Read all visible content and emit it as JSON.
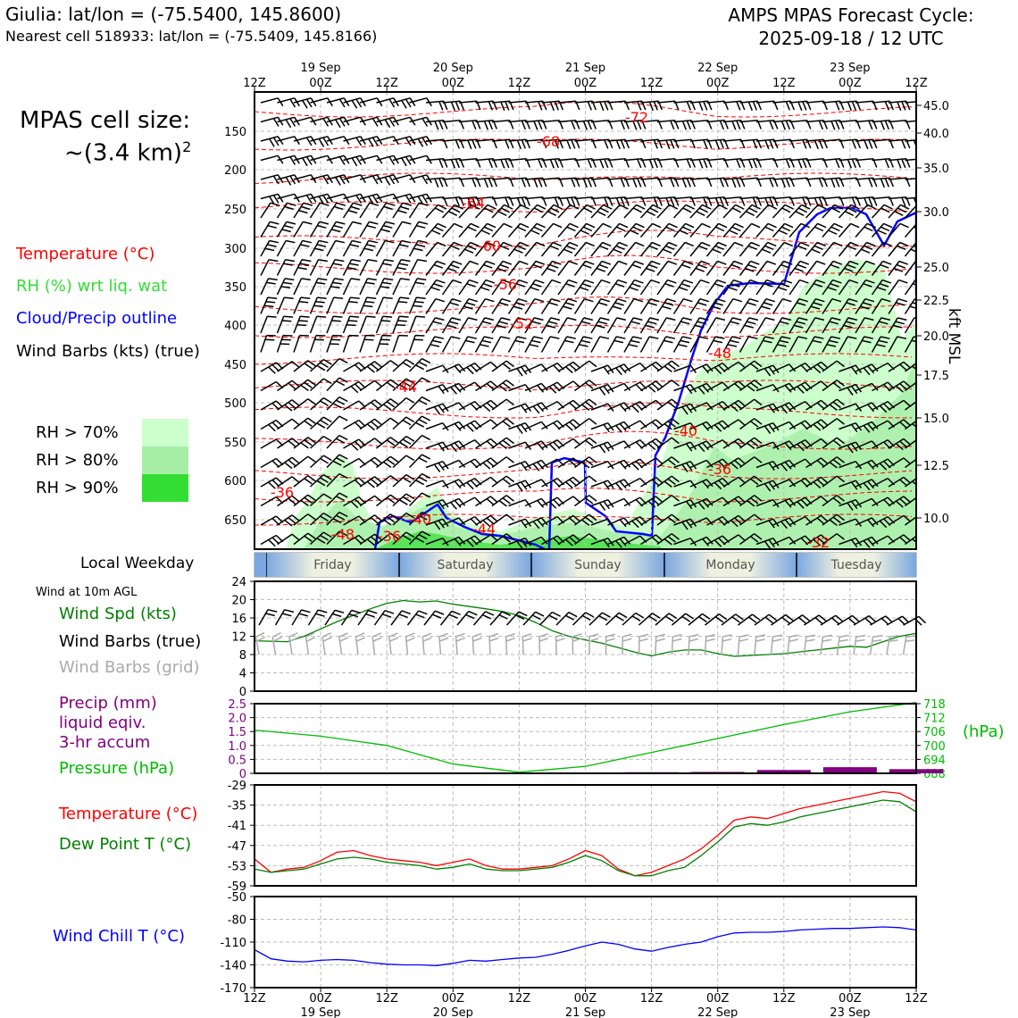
{
  "header": {
    "station": "Giulia: lat/lon = (-75.5400, 145.8600)",
    "nearest": "Nearest cell 518933: lat/lon = (-75.5409, 145.8166)",
    "cycle_line1": "AMPS MPAS Forecast Cycle:",
    "cycle_line2": "2025-09-18 / 12 UTC"
  },
  "legend": {
    "cell_size_label": "MPAS cell size:",
    "cell_size_value": "~(3.4 km)",
    "cell_size_exp": "2",
    "temperature": "Temperature (°C)",
    "rh": "RH (%) wrt liq. wat",
    "cloud": "Cloud/Precip outline",
    "barbs": "Wind Barbs (kts) (true)",
    "rh70": "RH > 70%",
    "rh80": "RH > 80%",
    "rh90": "RH > 90%",
    "weekday_label": "Local Weekday",
    "wind10m": "Wind at 10m AGL",
    "wind_spd": "Wind Spd (kts)",
    "barbs_true": "Wind Barbs (true)",
    "barbs_grid": "Wind Barbs (grid)",
    "precip1": "Precip (mm)",
    "precip2": "liquid eqiv.",
    "precip3": "3-hr accum",
    "pressure": "Pressure (hPa)",
    "hpa_unit": "(hPa)",
    "temp2": "Temperature (°C)",
    "dew": "Dew Point T (°C)",
    "windchill": "Wind Chill T (°C)",
    "kft": "kft MSL"
  },
  "colors": {
    "temp": "#ff0000",
    "rh": "#33dd33",
    "cloud": "#0000ff",
    "pressure": "#00bb00",
    "precip": "#800080",
    "dew": "#008000",
    "windchill": "#0000ff",
    "grid_barb": "#aaaaaa",
    "rh70": "#ccffcc",
    "rh80": "#a6eea6",
    "rh90": "#33dd33"
  },
  "chart_data": [
    {
      "type": "area",
      "name": "cross-section",
      "x_ticks": [
        "12Z",
        "00Z",
        "12Z",
        "00Z",
        "12Z",
        "00Z",
        "12Z",
        "00Z",
        "12Z",
        "00Z",
        "12Z"
      ],
      "x_dates": [
        "19 Sep",
        "20 Sep",
        "21 Sep",
        "22 Sep",
        "23 Sep"
      ],
      "y_left_ticks": [
        150,
        200,
        250,
        300,
        350,
        400,
        450,
        500,
        550,
        600,
        650
      ],
      "y_right_ticks": [
        "45.0",
        "40.0",
        "35.0",
        "30.0",
        "25.0",
        "22.5",
        "20.0",
        "17.5",
        "15.0",
        "12.5",
        "10.0"
      ],
      "temperature_labels": [
        "-72",
        "-68",
        "-64",
        "-60",
        "-56",
        "-52",
        "-48",
        "-44",
        "-40",
        "-36",
        "-36",
        "-40",
        "-44",
        "-48",
        "-36",
        "-32"
      ]
    },
    {
      "type": "bar",
      "name": "weekday",
      "categories": [
        "Friday",
        "Saturday",
        "Sunday",
        "Monday",
        "Tuesday"
      ]
    },
    {
      "type": "line",
      "name": "wind10m",
      "ylim": [
        0,
        24
      ],
      "y_ticks": [
        "0",
        "4",
        "8",
        "12",
        "16",
        "20",
        "24"
      ],
      "x_hours": [
        0,
        6,
        9,
        12,
        15,
        18,
        21,
        24,
        27,
        30,
        33,
        36,
        39,
        42,
        45,
        48,
        51,
        54,
        57,
        60,
        63,
        66,
        69,
        72,
        75,
        78,
        81,
        84,
        87,
        90,
        93,
        96,
        99,
        102,
        105,
        108,
        111,
        114,
        117,
        120
      ],
      "series": [
        {
          "values": [
            11,
            10.8,
            12,
            13.6,
            15.2,
            16.6,
            18,
            19.2,
            19.8,
            19.5,
            19.7,
            19,
            18.5,
            18,
            17.4,
            16.5,
            15,
            13.2,
            12,
            11.2,
            10.5,
            9.5,
            8.5,
            7.7,
            8.5,
            9,
            9,
            8.2,
            7.6,
            7.8,
            8,
            8.2,
            8.6,
            9,
            9.4,
            9.8,
            9.6,
            10.8,
            12,
            12.6
          ]
        }
      ]
    },
    {
      "type": "line",
      "name": "precip-pressure",
      "ylim": [
        0,
        2.5
      ],
      "y_ticks": [
        "0",
        "0.5",
        "1.0",
        "1.5",
        "2.0",
        "2.5"
      ],
      "y2_ticks": [
        "688",
        "694",
        "700",
        "706",
        "712",
        "718"
      ],
      "x_hours": [
        0,
        12,
        24,
        36,
        48,
        60,
        72,
        84,
        96,
        108,
        120
      ],
      "series": [
        {
          "values": [
            706.6,
            704,
            700,
            692,
            688.5,
            691,
            697,
            703,
            709,
            714.5,
            718.5
          ]
        },
        {
          "values": [
            0,
            0,
            0,
            0,
            0,
            0,
            0.04,
            0.05,
            0.12,
            0.22,
            0.15
          ]
        }
      ]
    },
    {
      "type": "line",
      "name": "temperature-dew",
      "ylim": [
        -59,
        -29
      ],
      "y_ticks": [
        "-59",
        "-53",
        "-47",
        "-41",
        "-35",
        "-29"
      ],
      "x_hours": [
        0,
        3,
        6,
        9,
        12,
        15,
        18,
        21,
        24,
        27,
        30,
        33,
        36,
        39,
        42,
        45,
        48,
        51,
        54,
        57,
        60,
        63,
        66,
        69,
        72,
        75,
        78,
        81,
        84,
        87,
        90,
        93,
        96,
        99,
        102,
        105,
        108,
        111,
        114,
        117,
        120
      ],
      "series": [
        {
          "values": [
            -51,
            -55,
            -54,
            -53.5,
            -51.5,
            -49,
            -48.5,
            -50,
            -51,
            -51.5,
            -52,
            -53,
            -52,
            -51,
            -53,
            -54,
            -54,
            -53.5,
            -53,
            -51,
            -48.5,
            -50,
            -54,
            -56,
            -55,
            -53,
            -51,
            -48,
            -44,
            -39.5,
            -38.5,
            -39,
            -37.5,
            -36,
            -35,
            -34,
            -33,
            -32,
            -31,
            -31.5,
            -34
          ]
        },
        {
          "values": [
            -54,
            -55,
            -54.5,
            -54,
            -52.5,
            -51,
            -50.5,
            -51,
            -52,
            -52.5,
            -53,
            -54,
            -53.5,
            -52.5,
            -54,
            -54.5,
            -54.5,
            -54,
            -53.5,
            -52,
            -50,
            -51.5,
            -54.5,
            -56,
            -56,
            -54.5,
            -53.5,
            -50,
            -46,
            -41.5,
            -40.5,
            -41,
            -40,
            -38.5,
            -37.5,
            -36.5,
            -35.5,
            -34.5,
            -33.5,
            -34,
            -37
          ]
        }
      ]
    },
    {
      "type": "line",
      "name": "windchill",
      "ylim": [
        -170,
        -50
      ],
      "y_ticks": [
        "-170",
        "-140",
        "-110",
        "-80",
        "-50"
      ],
      "x_ticks": [
        "12Z",
        "00Z",
        "12Z",
        "00Z",
        "12Z",
        "00Z",
        "12Z",
        "00Z",
        "12Z",
        "00Z",
        "12Z"
      ],
      "x_dates": [
        "19 Sep",
        "20 Sep",
        "21 Sep",
        "22 Sep",
        "23 Sep"
      ],
      "x_hours": [
        0,
        3,
        6,
        9,
        12,
        15,
        18,
        21,
        24,
        27,
        30,
        33,
        36,
        39,
        42,
        45,
        48,
        51,
        54,
        57,
        60,
        63,
        66,
        69,
        72,
        75,
        78,
        81,
        84,
        87,
        90,
        93,
        96,
        99,
        102,
        105,
        108,
        111,
        114,
        117,
        120
      ],
      "series": [
        {
          "values": [
            -120,
            -132,
            -135,
            -136,
            -134,
            -133,
            -134,
            -137,
            -139,
            -140,
            -140,
            -141,
            -138,
            -134,
            -135,
            -133,
            -131,
            -130,
            -126,
            -121,
            -115,
            -110,
            -113,
            -119,
            -122,
            -117,
            -113,
            -110,
            -103,
            -98,
            -97,
            -97,
            -96,
            -94,
            -93,
            -92,
            -92,
            -91,
            -90,
            -91,
            -94
          ]
        }
      ]
    }
  ]
}
